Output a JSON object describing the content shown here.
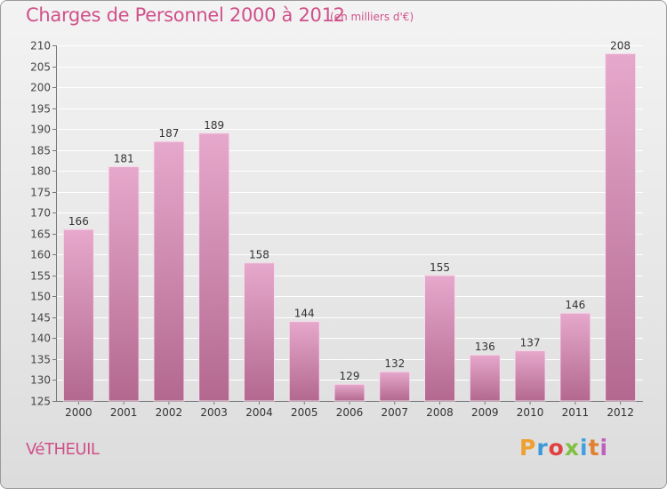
{
  "header": {
    "title": "Charges de Personnel 2000 à 2012",
    "subtitle": "(en milliers d'€)"
  },
  "footer": {
    "commune": "VéTHEUIL",
    "logo": "Proxiti",
    "logo_colors": [
      "#f0a030",
      "#3a9ad9",
      "#e04040",
      "#80c040",
      "#40a0e0",
      "#e08030",
      "#c060c0"
    ]
  },
  "colors": {
    "bar_top": "#e6a8cc",
    "bar_bottom": "#b3688f",
    "accent": "#d0508a"
  },
  "chart_data": {
    "type": "bar",
    "categories": [
      "2000",
      "2001",
      "2002",
      "2003",
      "2004",
      "2005",
      "2006",
      "2007",
      "2008",
      "2009",
      "2010",
      "2011",
      "2012"
    ],
    "values": [
      166,
      181,
      187,
      189,
      158,
      144,
      129,
      132,
      155,
      136,
      137,
      146,
      208
    ],
    "ylim": [
      125,
      210
    ],
    "yticks": [
      125,
      130,
      135,
      140,
      145,
      150,
      155,
      160,
      165,
      170,
      175,
      180,
      185,
      190,
      195,
      200,
      205,
      210
    ],
    "grid": true
  }
}
